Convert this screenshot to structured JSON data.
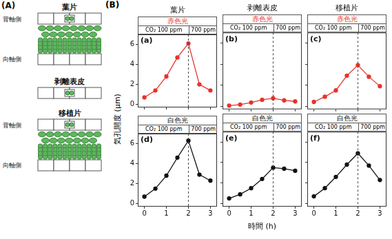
{
  "panel_a": {
    "label": "(A)",
    "items": [
      {
        "title": "葉片",
        "top": "背軸側",
        "bottom": "向軸側"
      },
      {
        "title": "剥離表皮"
      },
      {
        "title": "移植片",
        "top": "背軸側",
        "bottom": "向軸側"
      }
    ]
  },
  "panel_b": {
    "label": "(B)",
    "columns": [
      "葉片",
      "剥離表皮",
      "移植片"
    ],
    "co2_labels": [
      "CO₂ 100 ppm",
      "700 ppm"
    ],
    "co2_switch": 2,
    "ylabel": "気孔開度 (μm)",
    "xlabel": "時間 (h)"
  },
  "chart_data": [
    {
      "type": "line",
      "title": "(a)",
      "light": "赤色光",
      "x": [
        0,
        0.5,
        1,
        1.5,
        2,
        2.5,
        3
      ],
      "values": [
        0.7,
        1.4,
        2.8,
        4.7,
        6.1,
        2.0,
        1.4
      ],
      "color": "#e8322b",
      "marker": "circle",
      "xlim": [
        -0.3,
        3.3
      ],
      "xticks": [
        0,
        1,
        2,
        3
      ],
      "ylim": [
        -0.3,
        7
      ],
      "yticks": [
        0,
        2,
        4,
        6
      ],
      "grid": false,
      "tick_labels": "y"
    },
    {
      "type": "line",
      "title": "(b)",
      "light": "赤色光",
      "x": [
        0,
        0.5,
        1,
        1.5,
        2,
        2.5,
        3
      ],
      "values": [
        0.05,
        0.15,
        0.35,
        0.6,
        0.75,
        0.55,
        0.45
      ],
      "color": "#e8322b",
      "marker": "circle",
      "xlim": [
        -0.3,
        3.3
      ],
      "xticks": [
        0,
        1,
        2,
        3
      ],
      "ylim": [
        -0.3,
        7
      ],
      "yticks": [
        0,
        2,
        4,
        6
      ],
      "grid": false,
      "tick_labels": false
    },
    {
      "type": "line",
      "title": "(c)",
      "light": "赤色光",
      "x": [
        0,
        0.5,
        1,
        1.5,
        2,
        2.5,
        3
      ],
      "values": [
        0.4,
        0.9,
        1.5,
        2.9,
        3.9,
        2.8,
        1.9
      ],
      "color": "#e8322b",
      "marker": "circle",
      "xlim": [
        -0.3,
        3.3
      ],
      "xticks": [
        0,
        1,
        2,
        3
      ],
      "ylim": [
        -0.3,
        7
      ],
      "yticks": [
        0,
        2,
        4,
        6
      ],
      "grid": false,
      "tick_labels": false
    },
    {
      "type": "line",
      "title": "(d)",
      "light": "白色光",
      "x": [
        0,
        0.5,
        1,
        1.5,
        2,
        2.5,
        3
      ],
      "values": [
        0.7,
        1.5,
        2.8,
        4.6,
        6.3,
        2.9,
        2.3
      ],
      "color": "#111111",
      "marker": "circle",
      "xlim": [
        -0.3,
        3.3
      ],
      "xticks": [
        0,
        1,
        2,
        3
      ],
      "ylim": [
        -0.3,
        7
      ],
      "yticks": [
        0,
        2,
        4,
        6
      ],
      "grid": false,
      "tick_labels": true
    },
    {
      "type": "line",
      "title": "(e)",
      "light": "白色光",
      "x": [
        0,
        0.5,
        1,
        1.5,
        2,
        2.5,
        3
      ],
      "values": [
        0.5,
        0.9,
        1.5,
        2.4,
        3.5,
        3.4,
        3.2
      ],
      "color": "#111111",
      "marker": "circle",
      "xlim": [
        -0.3,
        3.3
      ],
      "xticks": [
        0,
        1,
        2,
        3
      ],
      "ylim": [
        -0.3,
        7
      ],
      "yticks": [
        0,
        2,
        4,
        6
      ],
      "grid": false,
      "tick_labels": "x"
    },
    {
      "type": "line",
      "title": "(f)",
      "light": "白色光",
      "x": [
        0,
        0.5,
        1,
        1.5,
        2,
        2.5,
        3
      ],
      "values": [
        0.7,
        1.5,
        2.6,
        3.8,
        4.9,
        3.7,
        2.3
      ],
      "color": "#111111",
      "marker": "circle",
      "xlim": [
        -0.3,
        3.3
      ],
      "xticks": [
        0,
        1,
        2,
        3
      ],
      "ylim": [
        -0.3,
        7
      ],
      "yticks": [
        0,
        2,
        4,
        6
      ],
      "grid": false,
      "tick_labels": "x"
    }
  ]
}
